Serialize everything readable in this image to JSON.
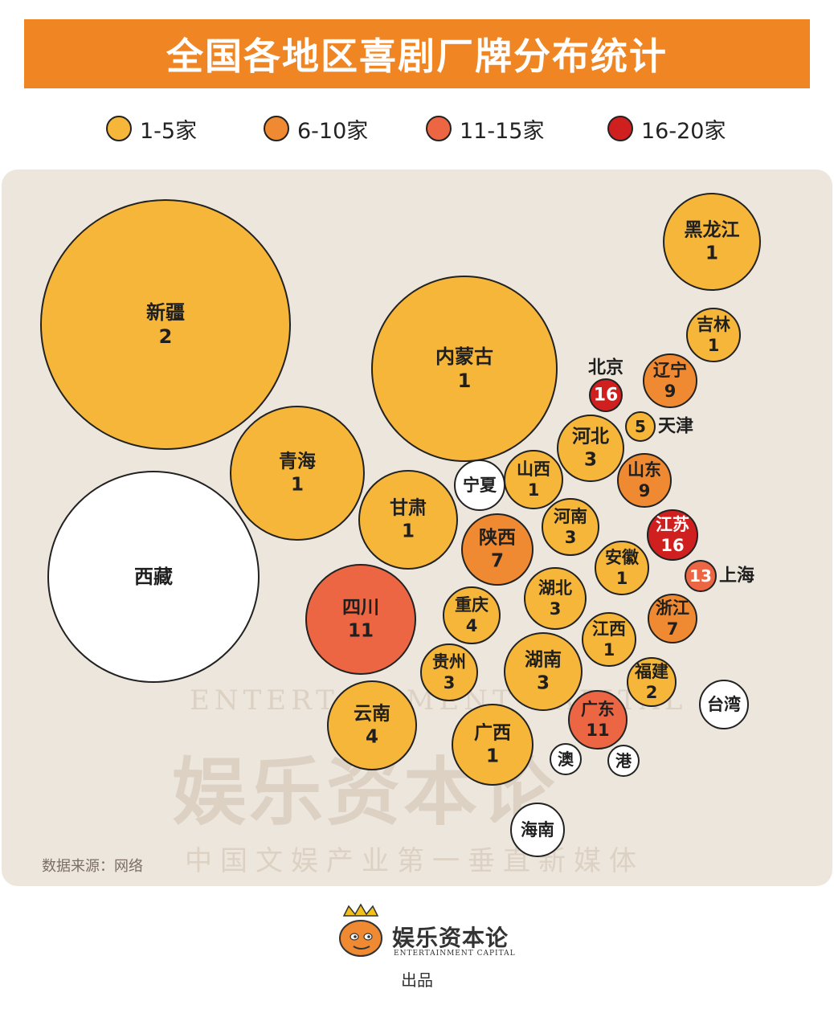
{
  "title": "全国各地区喜剧厂牌分布统计",
  "legend": [
    {
      "label": "1-5家",
      "color": "#f6b63a"
    },
    {
      "label": "6-10家",
      "color": "#f08a32"
    },
    {
      "label": "11-15家",
      "color": "#ec6644"
    },
    {
      "label": "16-20家",
      "color": "#cf1f1f"
    }
  ],
  "watermark": {
    "cn": "娱乐资本论",
    "en": "ENTERTAINMENT CAPITAL",
    "slogan": "中国文娱产业第一垂直新媒体"
  },
  "source": "数据来源：网络",
  "footer": {
    "brand": "娱乐资本论",
    "brand_en": "ENTERTAINMENT CAPITAL",
    "credit": "出品"
  },
  "colors": {
    "none": "#ffffff",
    "c1": "#f6b63a",
    "c2": "#f08a32",
    "c3": "#ec6644",
    "c4": "#cf1f1f",
    "stroke": "#222222"
  },
  "chart_data": {
    "type": "bubble",
    "regions": [
      {
        "name": "新疆",
        "value": 2
      },
      {
        "name": "西藏",
        "value": null
      },
      {
        "name": "青海",
        "value": 1
      },
      {
        "name": "内蒙古",
        "value": 1
      },
      {
        "name": "甘肃",
        "value": 1
      },
      {
        "name": "宁夏",
        "value": null
      },
      {
        "name": "四川",
        "value": 11
      },
      {
        "name": "云南",
        "value": 4
      },
      {
        "name": "陕西",
        "value": 7
      },
      {
        "name": "山西",
        "value": 1
      },
      {
        "name": "重庆",
        "value": 4
      },
      {
        "name": "贵州",
        "value": 3
      },
      {
        "name": "广西",
        "value": 1
      },
      {
        "name": "海南",
        "value": null
      },
      {
        "name": "湖北",
        "value": 3
      },
      {
        "name": "湖南",
        "value": 3
      },
      {
        "name": "河南",
        "value": 3
      },
      {
        "name": "河北",
        "value": 3
      },
      {
        "name": "北京",
        "value": 16
      },
      {
        "name": "天津",
        "value": 5
      },
      {
        "name": "辽宁",
        "value": 9
      },
      {
        "name": "吉林",
        "value": 1
      },
      {
        "name": "黑龙江",
        "value": 1
      },
      {
        "name": "山东",
        "value": 9
      },
      {
        "name": "江苏",
        "value": 16
      },
      {
        "name": "上海",
        "value": 13
      },
      {
        "name": "安徽",
        "value": 1
      },
      {
        "name": "浙江",
        "value": 7
      },
      {
        "name": "江西",
        "value": 1
      },
      {
        "name": "福建",
        "value": 2
      },
      {
        "name": "广东",
        "value": 11
      },
      {
        "name": "台湾",
        "value": null
      },
      {
        "name": "澳",
        "value": null
      },
      {
        "name": "港",
        "value": null
      }
    ]
  }
}
